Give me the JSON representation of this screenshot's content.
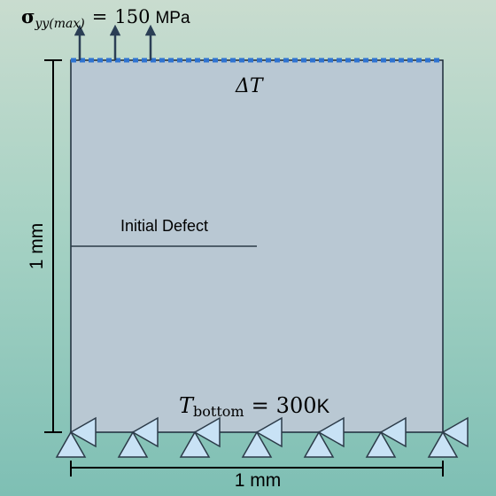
{
  "load": {
    "sigma_symbol": "σ",
    "sigma_subscript": "yy(max)",
    "equals": "=",
    "value": "150",
    "unit": "MPa"
  },
  "thermal": {
    "top_label": "ΔT",
    "bottom_symbol": "T",
    "bottom_subscript": "bottom",
    "bottom_equals": "=",
    "bottom_value": "300",
    "bottom_unit": "K"
  },
  "defect": {
    "label": "Initial Defect"
  },
  "dimensions": {
    "height_label": "1 mm",
    "width_label": "1 mm"
  },
  "colors": {
    "plate_fill": "#b9c8d3",
    "plate_stroke": "#1d2b3a",
    "top_dashed_line": "#2e73d1",
    "support_fill": "#c8e2f5",
    "support_stroke": "#2b3a48",
    "arrow_color": "#2b3e55",
    "dimension_line": "#000000"
  },
  "supports": {
    "count": 7
  },
  "load_arrows": {
    "count": 3
  }
}
